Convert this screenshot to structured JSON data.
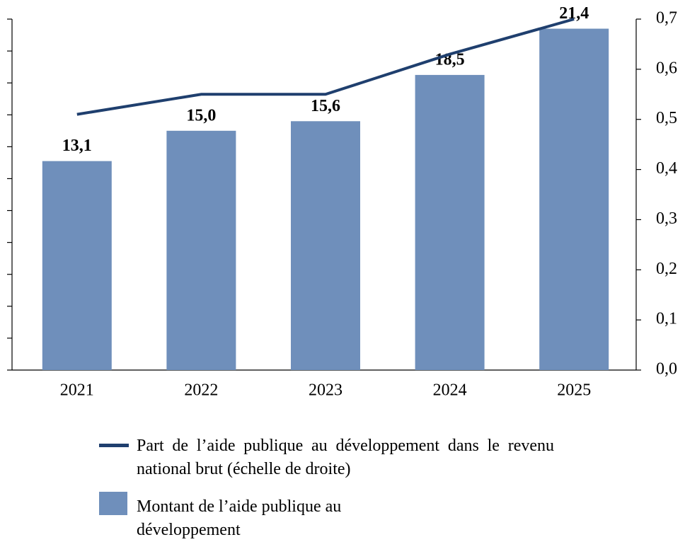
{
  "chart_data": {
    "type": "bar-line",
    "categories": [
      "2021",
      "2022",
      "2023",
      "2024",
      "2025"
    ],
    "series": [
      {
        "name": "Montant de l’aide publique au développement",
        "color": "#6f8fbb",
        "type": "bar",
        "values": [
          13.1,
          15.0,
          15.6,
          18.5,
          21.4
        ],
        "value_labels": [
          "13,1",
          "15,0",
          "15,6",
          "18,5",
          "21,4"
        ]
      },
      {
        "name": "Part de l’aide publique au développement dans le revenu national brut (échelle de droite)",
        "color": "#1f3f6e",
        "type": "line",
        "axis": "y2",
        "values": [
          0.51,
          0.55,
          0.55,
          0.63,
          0.7
        ]
      }
    ],
    "ylim": [
      0,
      22
    ],
    "yticks": [
      0,
      2,
      4,
      6,
      8,
      10,
      12,
      14,
      16,
      18,
      20,
      22
    ],
    "y2lim": [
      0,
      0.7
    ],
    "y2ticks": [
      {
        "value": 0,
        "label": "0,0"
      },
      {
        "value": 0.1,
        "label": "0,1"
      },
      {
        "value": 0.2,
        "label": "0,2"
      },
      {
        "value": 0.3,
        "label": "0,3"
      },
      {
        "value": 0.4,
        "label": "0,4"
      },
      {
        "value": 0.5,
        "label": "0,5"
      },
      {
        "value": 0.6,
        "label": "0,6"
      },
      {
        "value": 0.7,
        "label": "0,7"
      }
    ]
  }
}
